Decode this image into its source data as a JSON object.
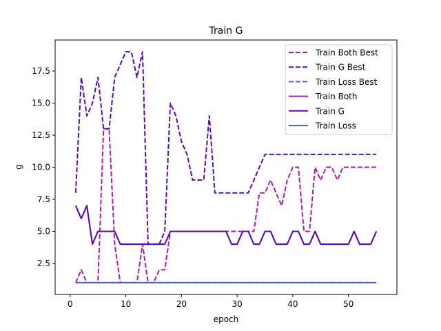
{
  "chart_data": {
    "type": "line",
    "title": "Train G",
    "xlabel": "epoch",
    "ylabel": "g",
    "xlim": [
      -2.7,
      58.7
    ],
    "ylim": [
      0.08,
      19.92
    ],
    "xticks": [
      0,
      10,
      20,
      30,
      40,
      50
    ],
    "yticks": [
      2.5,
      5.0,
      7.5,
      10.0,
      12.5,
      15.0,
      17.5
    ],
    "ytick_labels": [
      "2.5",
      "5.0",
      "7.5",
      "10.0",
      "12.5",
      "15.0",
      "17.5"
    ],
    "grid": false,
    "legend_position": "top-right",
    "x": [
      1,
      2,
      3,
      4,
      5,
      6,
      7,
      8,
      9,
      10,
      11,
      12,
      13,
      14,
      15,
      16,
      17,
      18,
      19,
      20,
      21,
      22,
      23,
      24,
      25,
      26,
      27,
      28,
      29,
      30,
      31,
      32,
      33,
      34,
      35,
      36,
      37,
      38,
      39,
      40,
      41,
      42,
      43,
      44,
      45,
      46,
      47,
      48,
      49,
      50,
      51,
      52,
      53,
      54,
      55
    ],
    "series": [
      {
        "name": "Train Both Best",
        "color": "#b5179e",
        "style": "dashed",
        "values": [
          1,
          2,
          1,
          1,
          1,
          13,
          13,
          4,
          1,
          1,
          1,
          1,
          4,
          1,
          1,
          2,
          2,
          5,
          5,
          5,
          5,
          5,
          5,
          5,
          5,
          5,
          5,
          5,
          5,
          5,
          5,
          5,
          5,
          8,
          8,
          9,
          8,
          7,
          9,
          10,
          10,
          5,
          5,
          10,
          9,
          10,
          10,
          9,
          10,
          10,
          10,
          10,
          10,
          10,
          10
        ]
      },
      {
        "name": "Train G Best",
        "color": "#560bad",
        "style": "dashed",
        "values": [
          8,
          17,
          14,
          15,
          17,
          13,
          13,
          17,
          18,
          19,
          19,
          17,
          19,
          4,
          4,
          4,
          5,
          15,
          14,
          12,
          11,
          9,
          9,
          9,
          14,
          8,
          8,
          8,
          8,
          8,
          8,
          8,
          9,
          10,
          11,
          11,
          11,
          11,
          11,
          11,
          11,
          11,
          11,
          11,
          11,
          11,
          11,
          11,
          11,
          11,
          11,
          11,
          11,
          11,
          11
        ]
      },
      {
        "name": "Train Loss Best",
        "color": "#4361ee",
        "style": "dashed",
        "values": [
          1,
          1,
          1,
          1,
          1,
          1,
          1,
          1,
          1,
          1,
          1,
          1,
          1,
          1,
          1,
          1,
          1,
          1,
          1,
          1,
          1,
          1,
          1,
          1,
          1,
          1,
          1,
          1,
          1,
          1,
          1,
          1,
          1,
          1,
          1,
          1,
          1,
          1,
          1,
          1,
          1,
          1,
          1,
          1,
          1,
          1,
          1,
          1,
          1,
          1,
          1,
          1,
          1,
          1,
          1
        ]
      },
      {
        "name": "Train Both",
        "color": "#b5179e",
        "style": "solid",
        "values": [
          7,
          6,
          7,
          4,
          5,
          5,
          5,
          5,
          4,
          4,
          4,
          4,
          4,
          4,
          4,
          4,
          4,
          5,
          5,
          5,
          5,
          5,
          5,
          5,
          5,
          5,
          5,
          5,
          4,
          4,
          5,
          5,
          4,
          4,
          5,
          5,
          4,
          4,
          4,
          5,
          5,
          4,
          4,
          5,
          4,
          4,
          4,
          4,
          4,
          4,
          5,
          4,
          4,
          4,
          5
        ]
      },
      {
        "name": "Train G",
        "color": "#560bad",
        "style": "solid",
        "values": [
          7,
          6,
          7,
          4,
          5,
          5,
          5,
          5,
          4,
          4,
          4,
          4,
          4,
          4,
          4,
          4,
          4,
          5,
          5,
          5,
          5,
          5,
          5,
          5,
          5,
          5,
          5,
          5,
          4,
          4,
          5,
          5,
          4,
          4,
          5,
          5,
          4,
          4,
          4,
          5,
          5,
          4,
          4,
          5,
          4,
          4,
          4,
          4,
          4,
          4,
          5,
          4,
          4,
          4,
          5
        ]
      },
      {
        "name": "Train Loss",
        "color": "#4361ee",
        "style": "solid",
        "values": [
          1,
          1,
          1,
          1,
          1,
          1,
          1,
          1,
          1,
          1,
          1,
          1,
          1,
          1,
          1,
          1,
          1,
          1,
          1,
          1,
          1,
          1,
          1,
          1,
          1,
          1,
          1,
          1,
          1,
          1,
          1,
          1,
          1,
          1,
          1,
          1,
          1,
          1,
          1,
          1,
          1,
          1,
          1,
          1,
          1,
          1,
          1,
          1,
          1,
          1,
          1,
          1,
          1,
          1,
          1
        ]
      }
    ]
  }
}
